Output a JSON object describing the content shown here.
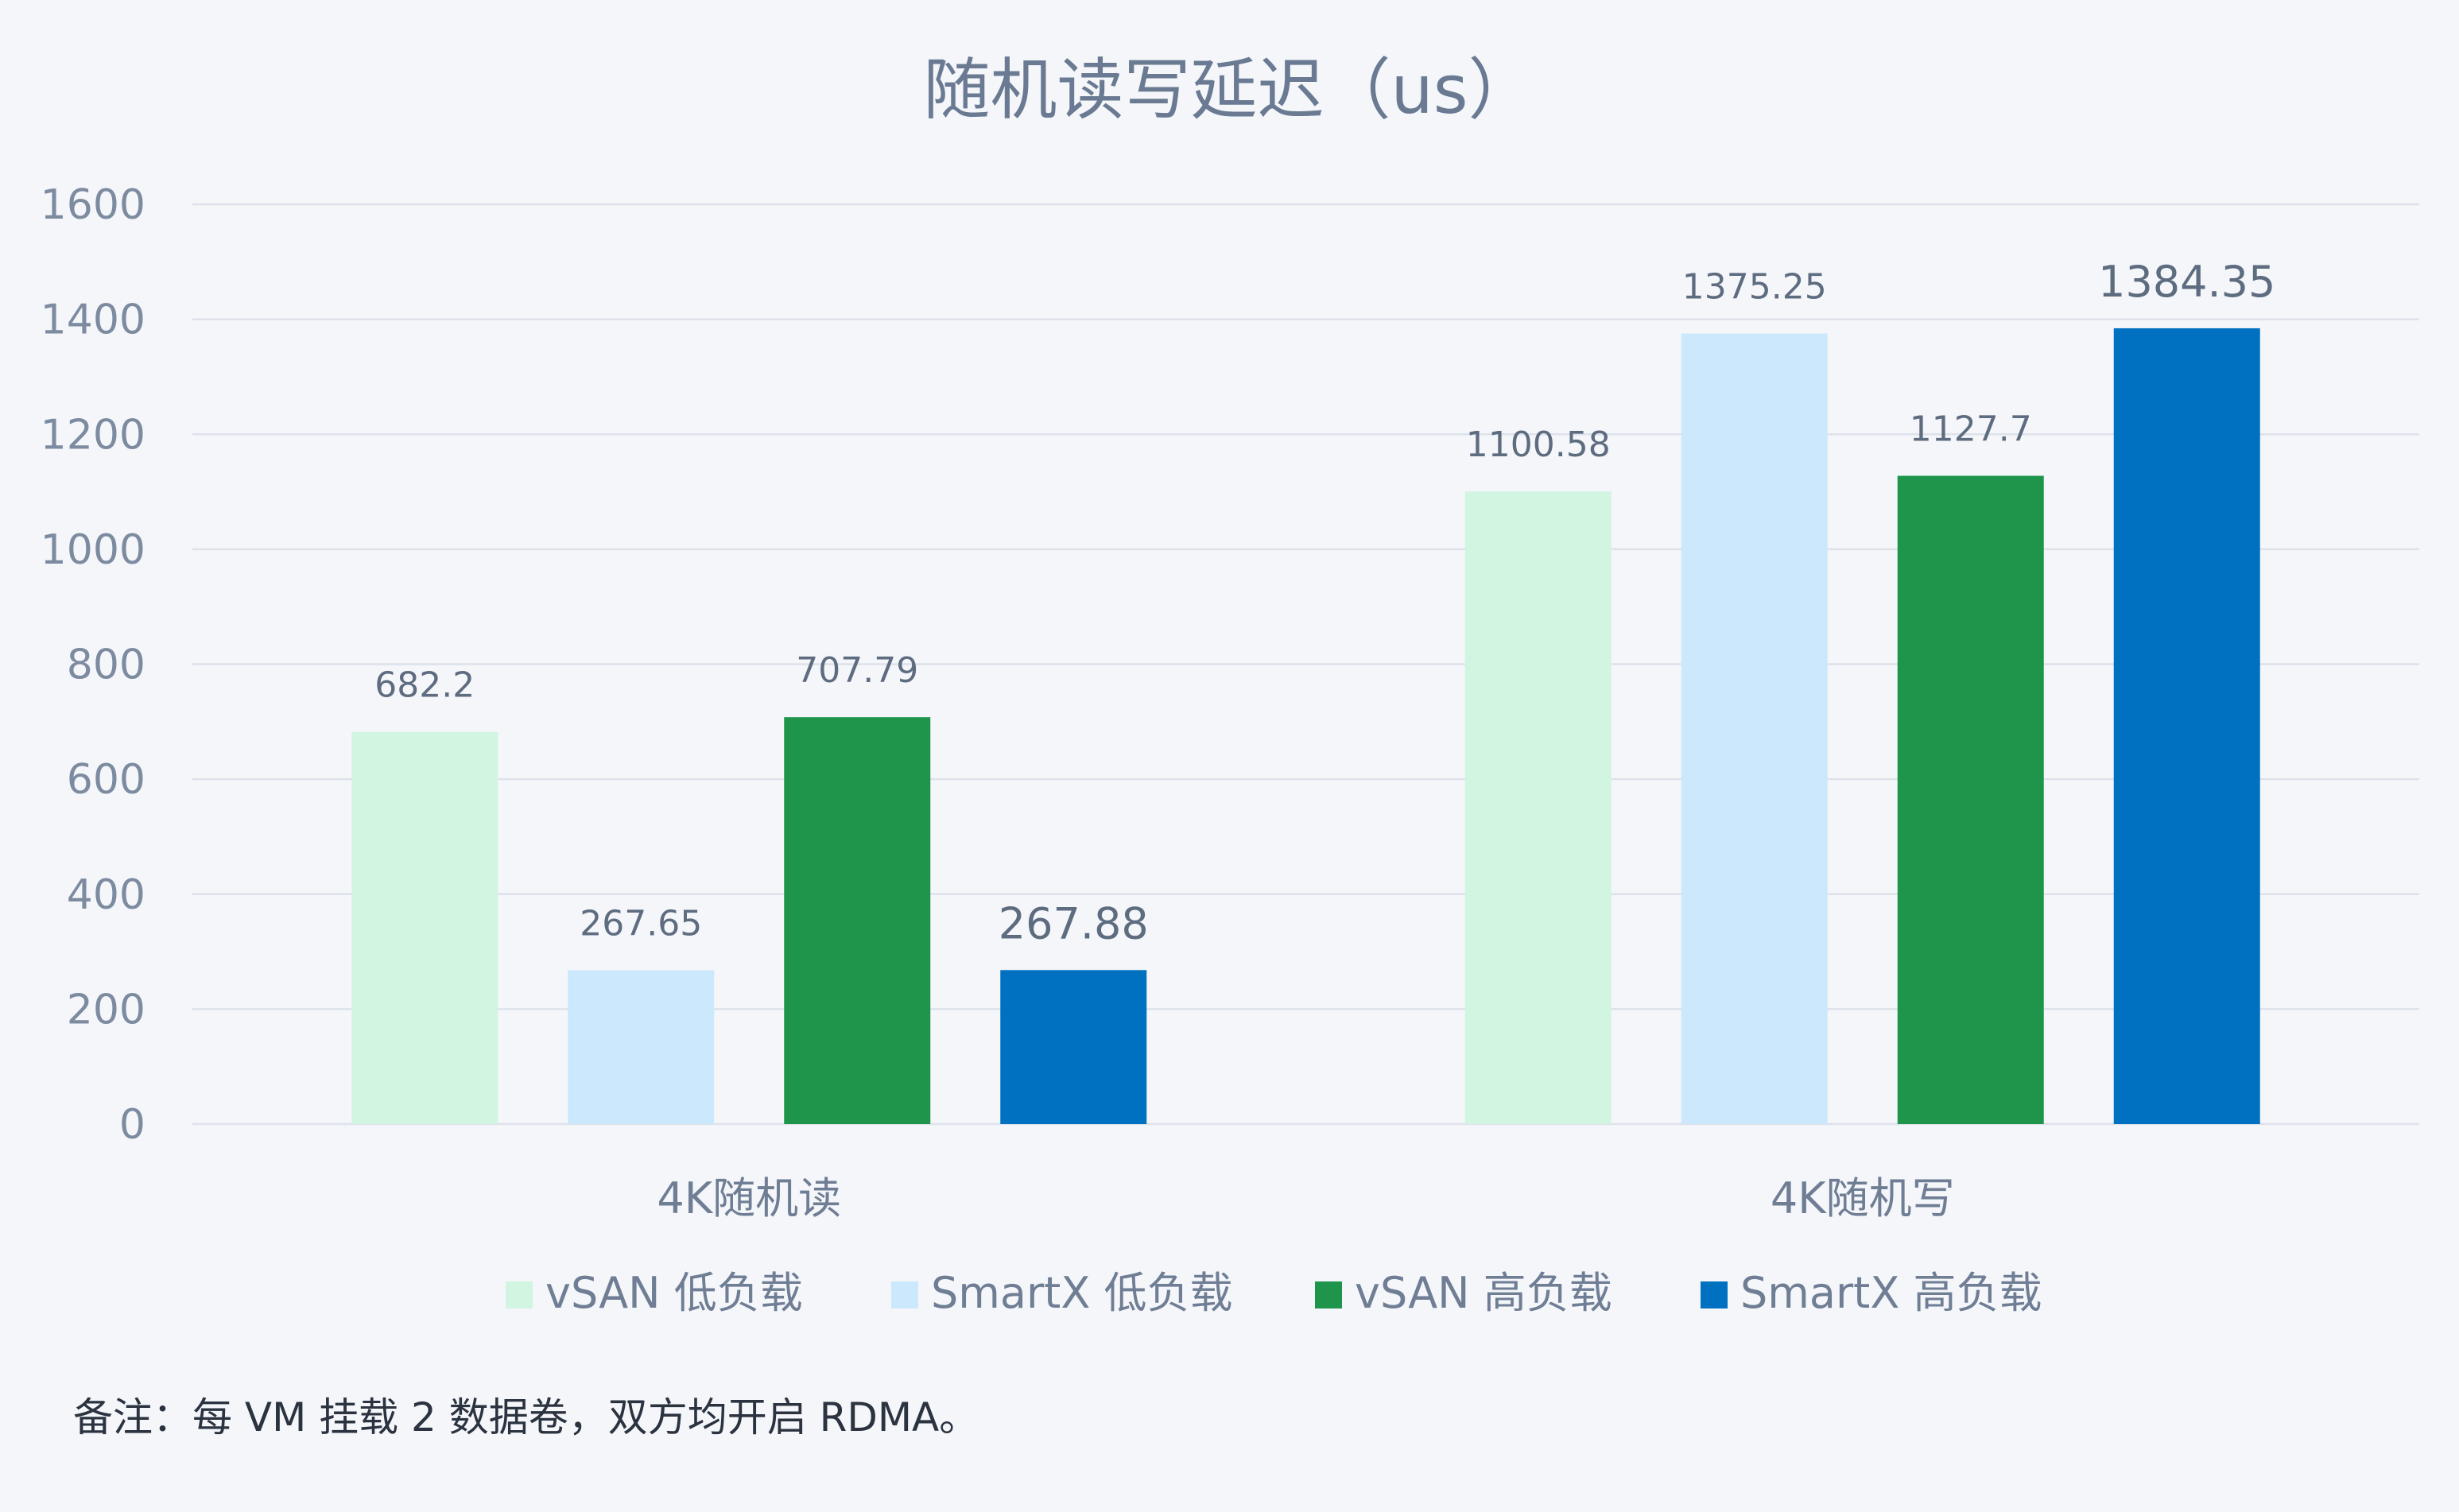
{
  "chart_data": {
    "type": "bar",
    "title": "随机读写延迟（us）",
    "categories": [
      "4K随机读",
      "4K随机写"
    ],
    "series": [
      {
        "name": "vSAN 低负载",
        "color": "#d1f5e1",
        "values": [
          682.2,
          1100.58
        ],
        "labels": [
          "682.2",
          "1100.58"
        ]
      },
      {
        "name": "SmartX 低负载",
        "color": "#cce8fc",
        "values": [
          267.65,
          1375.25
        ],
        "labels": [
          "267.65",
          "1375.25"
        ]
      },
      {
        "name": "vSAN 高负载",
        "color": "#1e954a",
        "values": [
          707.79,
          1127.7
        ],
        "labels": [
          "707.79",
          "1127.7"
        ]
      },
      {
        "name": "SmartX 高负载",
        "color": "#0071c1",
        "values": [
          267.88,
          1384.35
        ],
        "labels": [
          "267.88",
          "1384.35"
        ]
      }
    ],
    "ylim": [
      0,
      1600
    ],
    "yticks": [
      0,
      200,
      400,
      600,
      800,
      1000,
      1200,
      1400,
      1600
    ],
    "grid": true,
    "legend_position": "bottom"
  },
  "note": "备注：每 VM 挂载 2 数据卷，双方均开启 RDMA。"
}
